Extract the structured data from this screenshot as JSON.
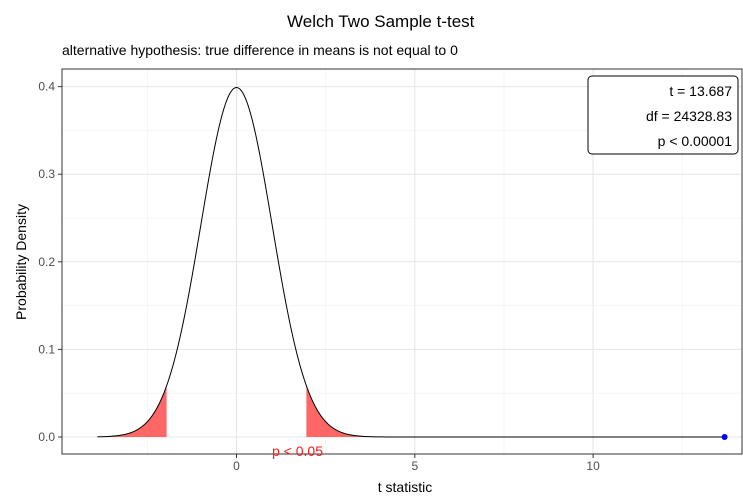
{
  "chart_data": {
    "type": "line",
    "title": "Welch Two Sample t-test",
    "subtitle": "alternative hypothesis: true difference in means is not equal to 0",
    "xlabel": "t statistic",
    "ylabel": "Probability Density",
    "xlim": [
      -4,
      14
    ],
    "ylim": [
      0,
      0.42
    ],
    "x_ticks": [
      0,
      5,
      10
    ],
    "x_tick_labels": [
      "0",
      "5",
      "10"
    ],
    "y_ticks": [
      0,
      0.1,
      0.2,
      0.3,
      0.4
    ],
    "y_tick_labels": [
      "0.0",
      "0.1",
      "0.2",
      "0.3",
      "0.4"
    ],
    "grid": true,
    "curve": {
      "distribution": "t",
      "df": 24328.83,
      "x_range": [
        -3.9,
        13.687
      ],
      "color": "#000000"
    },
    "rejection_region": {
      "critical_value": 1.96,
      "fill_color": "#ff6666",
      "label": "p < 0.05"
    },
    "observed_point": {
      "x": 13.687,
      "y": 0,
      "color": "#0000ff"
    },
    "stats_box": {
      "position": "top-right",
      "lines": [
        "t = 13.687",
        "df = 24328.83",
        "p < 0.00001"
      ]
    }
  }
}
